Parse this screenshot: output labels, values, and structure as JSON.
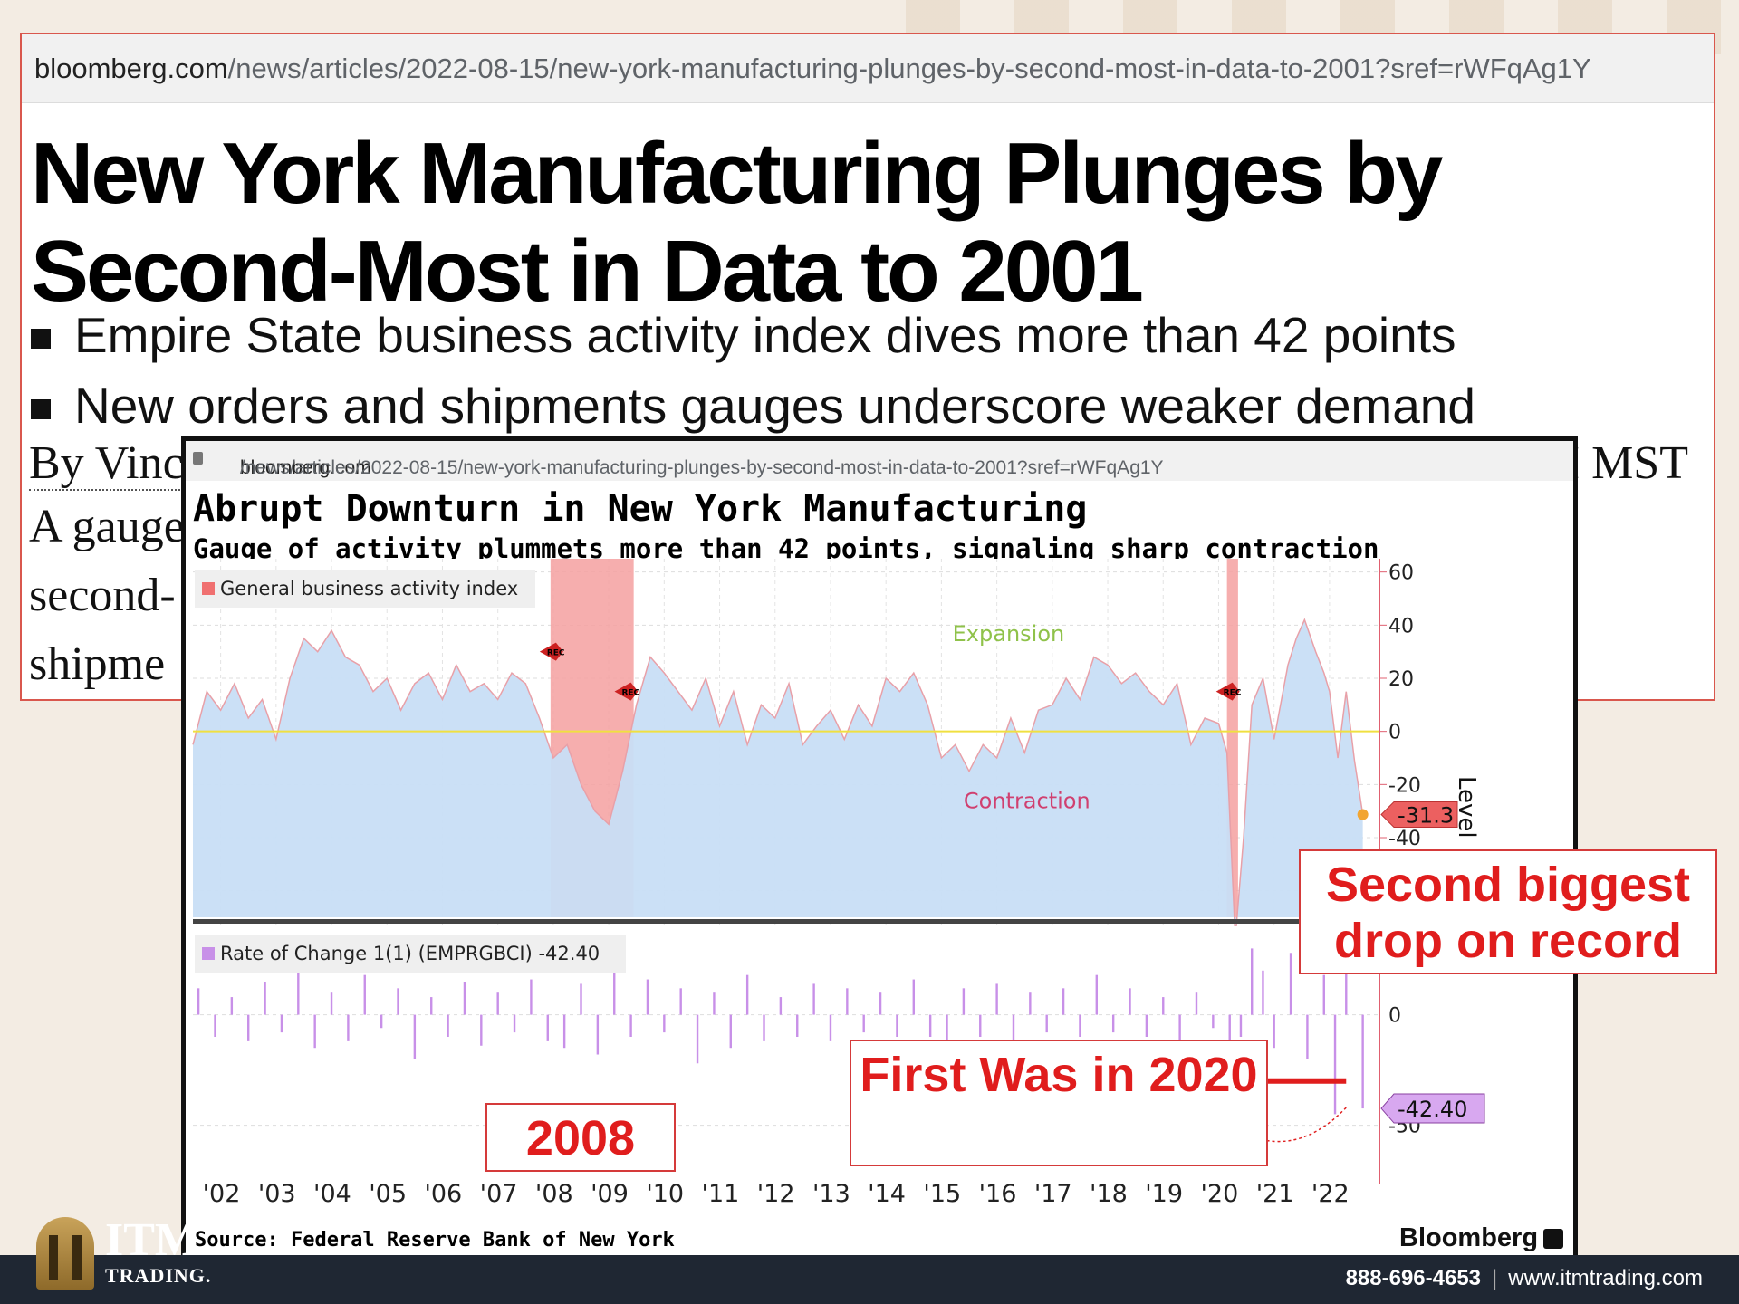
{
  "article": {
    "url_host": "bloomberg.com",
    "url_path": "/news/articles/2022-08-15/new-york-manufacturing-plunges-by-second-most-in-data-to-2001?sref=rWFqAg1Y",
    "headline_line1": "New York Manufacturing Plunges by",
    "headline_line2": "Second-Most in Data to 2001",
    "bullet1": "Empire State business activity index dives more than 42 points",
    "bullet2": "New orders and shipments gauges underscore weaker demand",
    "byline_start": "By Vinc",
    "byline_end": "I MST",
    "body_line1": "A gauge",
    "body_line2": "second-",
    "body_line3": "shipme"
  },
  "chart_window": {
    "url_host": "bloomberg.com",
    "url_path": "/news/articles/2022-08-15/new-york-manufacturing-plunges-by-second-most-in-data-to-2001?sref=rWFqAg1Y",
    "source": "Source: Federal Reserve Bank of New York",
    "brand": "Bloomberg"
  },
  "chart_data": [
    {
      "type": "area",
      "title": "Abrupt Downturn in New York Manufacturing",
      "subtitle": "Gauge of activity plummets more than 42 points, signaling sharp contraction",
      "legend": "General business activity index",
      "ylabel": "Level",
      "ylim": [
        -70,
        65
      ],
      "yticks": [
        60,
        40,
        20,
        0,
        -20,
        -40,
        -60
      ],
      "last_value_label": "-31.3",
      "annotations": [
        "Expansion",
        "Contraction"
      ],
      "recession_marker": "REC",
      "recessions": [
        [
          2007.95,
          2009.45
        ],
        [
          2020.15,
          2020.35
        ]
      ],
      "series": [
        {
          "name": "General business activity index",
          "color": "#e8a0a8",
          "x": [
            2001.5,
            2001.75,
            2002.0,
            2002.25,
            2002.5,
            2002.75,
            2003.0,
            2003.25,
            2003.5,
            2003.75,
            2004.0,
            2004.25,
            2004.5,
            2004.75,
            2005.0,
            2005.25,
            2005.5,
            2005.75,
            2006.0,
            2006.25,
            2006.5,
            2006.75,
            2007.0,
            2007.25,
            2007.5,
            2007.75,
            2008.0,
            2008.25,
            2008.5,
            2008.75,
            2009.0,
            2009.25,
            2009.5,
            2009.75,
            2010.0,
            2010.25,
            2010.5,
            2010.75,
            2011.0,
            2011.25,
            2011.5,
            2011.75,
            2012.0,
            2012.25,
            2012.5,
            2012.75,
            2013.0,
            2013.25,
            2013.5,
            2013.75,
            2014.0,
            2014.25,
            2014.5,
            2014.75,
            2015.0,
            2015.25,
            2015.5,
            2015.75,
            2016.0,
            2016.25,
            2016.5,
            2016.75,
            2017.0,
            2017.25,
            2017.5,
            2017.75,
            2018.0,
            2018.25,
            2018.5,
            2018.75,
            2019.0,
            2019.25,
            2019.5,
            2019.75,
            2020.0,
            2020.15,
            2020.3,
            2020.45,
            2020.6,
            2020.8,
            2021.0,
            2021.25,
            2021.4,
            2021.55,
            2021.75,
            2021.9,
            2022.0,
            2022.15,
            2022.3,
            2022.45,
            2022.6
          ],
          "y": [
            -5,
            15,
            8,
            18,
            5,
            12,
            -3,
            20,
            35,
            30,
            38,
            28,
            25,
            15,
            20,
            8,
            18,
            22,
            12,
            25,
            15,
            18,
            12,
            22,
            18,
            5,
            -10,
            -5,
            -20,
            -30,
            -35,
            -15,
            10,
            28,
            22,
            15,
            8,
            20,
            2,
            15,
            -5,
            10,
            5,
            18,
            -5,
            2,
            8,
            -3,
            10,
            2,
            20,
            15,
            22,
            10,
            -10,
            -5,
            -15,
            -5,
            -10,
            5,
            -8,
            8,
            10,
            20,
            12,
            28,
            25,
            18,
            22,
            15,
            10,
            18,
            -5,
            5,
            3,
            -8,
            -78,
            -40,
            10,
            20,
            -3,
            25,
            35,
            42,
            30,
            22,
            15,
            -10,
            15,
            -11,
            -31.3
          ]
        }
      ]
    },
    {
      "type": "bar",
      "legend": "Rate of Change 1(1) (EMPRGBCI) -42.40",
      "ylim": [
        -60,
        40
      ],
      "yticks": [
        0,
        -50
      ],
      "last_value_label": "-42.40",
      "partial_label": "cord",
      "x_tick_labels": [
        "'02",
        "'03",
        "'04",
        "'05",
        "'06",
        "'07",
        "'08",
        "'09",
        "'10",
        "'11",
        "'12",
        "'13",
        "'14",
        "'15",
        "'16",
        "'17",
        "'18",
        "'19",
        "'20",
        "'21",
        "'22"
      ],
      "series": [
        {
          "name": "Rate of Change 1(1) (EMPRGBCI)",
          "color": "#c890e8",
          "x": [
            2001.6,
            2001.9,
            2002.2,
            2002.5,
            2002.8,
            2003.1,
            2003.4,
            2003.7,
            2004.0,
            2004.3,
            2004.6,
            2004.9,
            2005.2,
            2005.5,
            2005.8,
            2006.1,
            2006.4,
            2006.7,
            2007.0,
            2007.3,
            2007.6,
            2007.9,
            2008.2,
            2008.5,
            2008.8,
            2009.1,
            2009.4,
            2009.7,
            2010.0,
            2010.3,
            2010.6,
            2010.9,
            2011.2,
            2011.5,
            2011.8,
            2012.1,
            2012.4,
            2012.7,
            2013.0,
            2013.3,
            2013.6,
            2013.9,
            2014.2,
            2014.5,
            2014.8,
            2015.1,
            2015.4,
            2015.7,
            2016.0,
            2016.3,
            2016.6,
            2016.9,
            2017.2,
            2017.5,
            2017.8,
            2018.1,
            2018.4,
            2018.7,
            2019.0,
            2019.3,
            2019.6,
            2019.9,
            2020.2,
            2020.4,
            2020.6,
            2020.8,
            2021.0,
            2021.3,
            2021.6,
            2021.9,
            2022.1,
            2022.3,
            2022.6
          ],
          "y": [
            12,
            -10,
            8,
            -12,
            15,
            -8,
            30,
            -15,
            10,
            -12,
            18,
            -6,
            12,
            -20,
            8,
            -10,
            15,
            -14,
            10,
            -8,
            16,
            -12,
            -15,
            14,
            -18,
            20,
            -10,
            16,
            -8,
            12,
            -22,
            10,
            -15,
            18,
            -12,
            8,
            -10,
            14,
            -12,
            12,
            -8,
            10,
            -10,
            16,
            -10,
            -14,
            12,
            -10,
            14,
            -12,
            10,
            -8,
            12,
            -10,
            18,
            -8,
            12,
            -10,
            8,
            -14,
            10,
            -6,
            -55,
            -10,
            30,
            20,
            -15,
            28,
            -20,
            18,
            -45,
            30,
            -42.4
          ]
        }
      ]
    }
  ],
  "annotations": {
    "second_biggest": "Second biggest drop on record",
    "first_was": "First Was in 2020",
    "year_2008": "2008"
  },
  "footer": {
    "logo_main": "ITM",
    "logo_sub": "TRADING.",
    "phone": "888-696-4653",
    "website": "www.itmtrading.com"
  }
}
